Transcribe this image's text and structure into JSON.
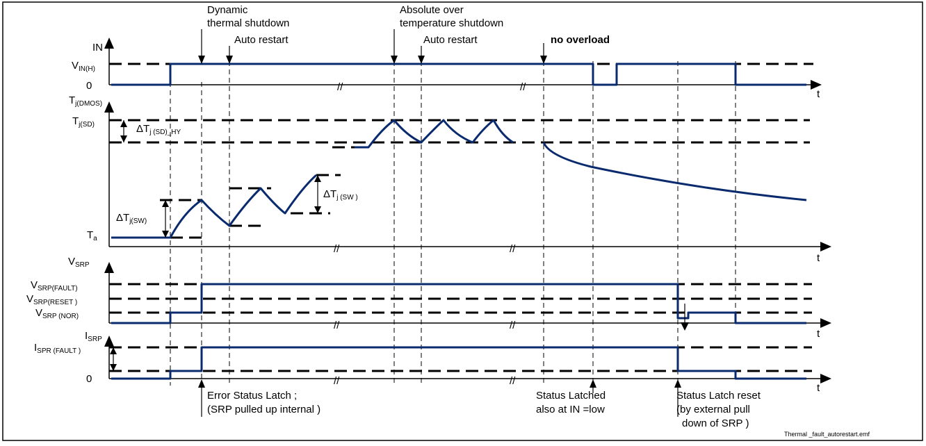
{
  "annotations": {
    "dynamic_line1": "Dynamic",
    "dynamic_line2": "thermal shutdown",
    "auto_restart_1": "Auto restart",
    "absolute_line1": "Absolute over",
    "absolute_line2": "temperature shutdown",
    "auto_restart_2": "Auto restart",
    "no_overload": "no overload",
    "error_latch_line1": "Error Status Latch ;",
    "error_latch_line2": "(SRP pulled up internal  )",
    "status_latched_line1": "Status Latched",
    "status_latched_line2": "also at IN =low",
    "latch_reset_line1": "Status Latch reset",
    "latch_reset_line2": "(by external pull",
    "latch_reset_line3": "down of SRP )",
    "filename": "Thermal _fault_autorestart.emf"
  },
  "panel_in": {
    "title": "IN",
    "level_main": "V",
    "level_sub": "IN(H)",
    "zero": "0",
    "t": "t"
  },
  "panel_tj": {
    "title_main": "T",
    "title_sub": "j(DMOS)",
    "sd_main": "T",
    "sd_sub": "j(SD)",
    "hy_main": "ΔT",
    "hy_sub": "j (SD)_HY",
    "sw_left_main": "ΔT",
    "sw_left_sub": "j(SW)",
    "sw_right_main": "ΔT",
    "sw_right_sub": "j (SW )",
    "ta_main": "T",
    "ta_sub": "a",
    "t": "t"
  },
  "panel_vsrp": {
    "title_main": "V",
    "title_sub": "SRP",
    "fault_main": "V",
    "fault_sub": "SRP(FAULT)",
    "reset_main": "V",
    "reset_sub": "SRP(RESET )",
    "nor_main": "V",
    "nor_sub": "SRP (NOR)",
    "t": "t"
  },
  "panel_isrp": {
    "title_main": "I",
    "title_sub": "SRP",
    "fault_main": "I",
    "fault_sub": "SPR (FAULT )",
    "zero": "0",
    "t": "t"
  },
  "break_mark": "//"
}
